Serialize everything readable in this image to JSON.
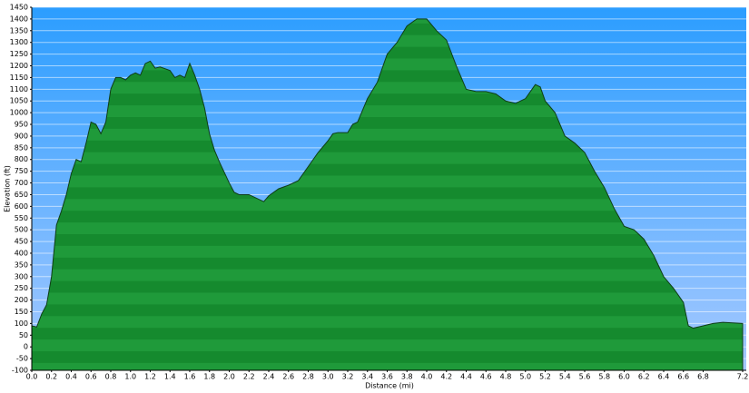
{
  "chart_data": {
    "type": "area",
    "xlabel": "Distance  (mi)",
    "ylabel": "Elevation (ft)",
    "color": "#1f9a3a",
    "grid": true,
    "xlim": [
      0,
      7.2
    ],
    "ylim": [
      -100,
      1450
    ],
    "xticks": [
      {
        "value": 0,
        "label": "0.0"
      },
      0.2,
      0.4,
      0.6,
      0.8,
      {
        "value": 1,
        "label": "1.0"
      },
      1.2,
      1.4,
      1.6,
      1.8,
      {
        "value": 2,
        "label": "2.0"
      },
      2.2,
      2.4,
      2.6,
      2.8,
      {
        "value": 3,
        "label": "3.0"
      },
      3.2,
      3.4,
      3.6,
      3.8,
      {
        "value": 4,
        "label": "4.0"
      },
      4.2,
      4.4,
      4.6,
      4.8,
      {
        "value": 5,
        "label": "5.0"
      },
      5.2,
      5.4,
      5.6,
      5.8,
      {
        "value": 6,
        "label": "6.0"
      },
      6.2,
      6.4,
      6.6,
      6.8,
      7.2
    ],
    "yticks": [
      -100,
      -50,
      0,
      50,
      100,
      150,
      200,
      250,
      300,
      350,
      400,
      450,
      500,
      550,
      600,
      650,
      700,
      750,
      800,
      850,
      900,
      950,
      1000,
      1050,
      1100,
      1150,
      1200,
      1250,
      1300,
      1350,
      1400,
      1450
    ],
    "x": [
      0,
      0.05,
      0.1,
      0.15,
      0.2,
      0.25,
      0.3,
      0.35,
      0.4,
      0.45,
      0.5,
      0.55,
      0.6,
      0.65,
      0.7,
      0.75,
      0.8,
      0.85,
      0.9,
      0.95,
      1,
      1.05,
      1.1,
      1.15,
      1.2,
      1.25,
      1.3,
      1.4,
      1.45,
      1.5,
      1.55,
      1.6,
      1.65,
      1.7,
      1.75,
      1.8,
      1.85,
      1.9,
      2,
      2.05,
      2.1,
      2.2,
      2.35,
      2.4,
      2.5,
      2.6,
      2.7,
      2.8,
      2.9,
      3,
      3.05,
      3.1,
      3.2,
      3.25,
      3.3,
      3.4,
      3.5,
      3.6,
      3.7,
      3.8,
      3.9,
      4,
      4.1,
      4.2,
      4.3,
      4.4,
      4.5,
      4.6,
      4.7,
      4.8,
      4.9,
      5,
      5.1,
      5.15,
      5.2,
      5.3,
      5.4,
      5.5,
      5.6,
      5.7,
      5.8,
      5.9,
      6,
      6.1,
      6.2,
      6.3,
      6.4,
      6.5,
      6.6,
      6.65,
      6.7,
      6.8,
      6.9,
      7,
      7.2
    ],
    "y": [
      90,
      85,
      140,
      180,
      300,
      520,
      580,
      650,
      740,
      800,
      790,
      870,
      960,
      950,
      910,
      960,
      1100,
      1150,
      1150,
      1140,
      1160,
      1170,
      1160,
      1210,
      1220,
      1190,
      1195,
      1180,
      1150,
      1160,
      1150,
      1210,
      1160,
      1100,
      1020,
      910,
      840,
      790,
      700,
      660,
      650,
      650,
      620,
      645,
      675,
      690,
      710,
      770,
      830,
      880,
      910,
      915,
      915,
      950,
      960,
      1060,
      1130,
      1250,
      1300,
      1370,
      1400,
      1400,
      1350,
      1310,
      1200,
      1100,
      1090,
      1090,
      1080,
      1050,
      1040,
      1060,
      1120,
      1110,
      1050,
      1000,
      900,
      870,
      830,
      750,
      680,
      590,
      515,
      500,
      460,
      390,
      300,
      250,
      190,
      90,
      80,
      90,
      100,
      105,
      100
    ]
  }
}
